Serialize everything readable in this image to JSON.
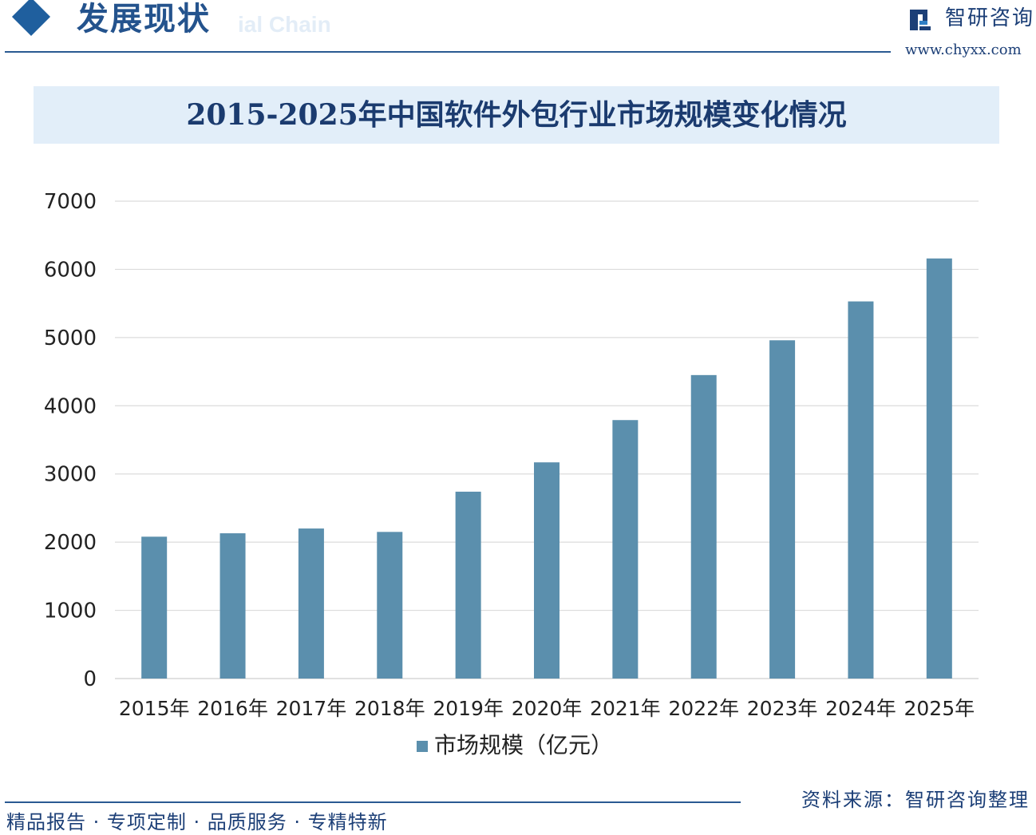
{
  "header": {
    "title": "发展现状",
    "subtitle_en": "ial Chain",
    "logo_text": "智研咨询",
    "logo_url": "www.chyxx.com"
  },
  "chart_data": {
    "type": "bar",
    "title": "2015-2025年中国软件外包行业市场规模变化情况",
    "categories": [
      "2015年",
      "2016年",
      "2017年",
      "2018年",
      "2019年",
      "2020年",
      "2021年",
      "2022年",
      "2023年",
      "2024年",
      "2025年"
    ],
    "series": [
      {
        "name": "市场规模（亿元）",
        "values": [
          2080,
          2130,
          2200,
          2150,
          2740,
          3170,
          3790,
          4450,
          4960,
          5530,
          6160
        ]
      }
    ],
    "ylim": [
      0,
      7000
    ],
    "yticks": [
      0,
      1000,
      2000,
      3000,
      4000,
      5000,
      6000,
      7000
    ],
    "grid": true,
    "legend_position": "bottom",
    "bar_color": "#5b8fad"
  },
  "footer": {
    "slogan": "精品报告 · 专项定制 · 品质服务 · 专精特新",
    "source": "资料来源：智研咨询整理"
  }
}
